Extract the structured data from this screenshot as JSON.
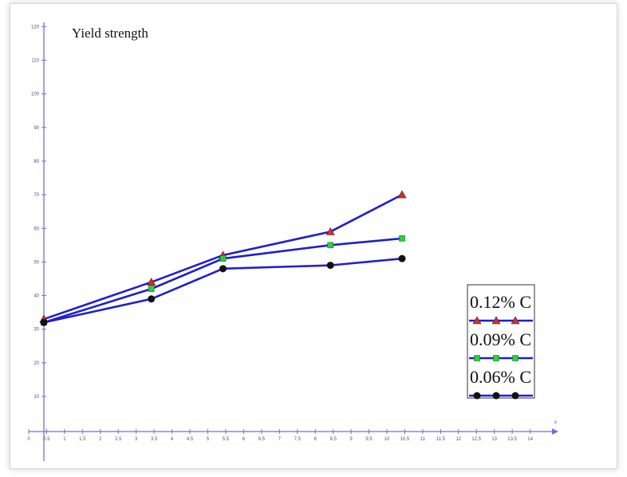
{
  "chart_data": {
    "type": "line",
    "title": "Yield strength",
    "xlabel": "",
    "ylabel": "",
    "x_axis_end_label": "x",
    "xlim": [
      0,
      14.5
    ],
    "ylim": [
      5,
      121
    ],
    "x_ticks": [
      0,
      0.5,
      1,
      1.5,
      2,
      2.5,
      3,
      3.5,
      4,
      4.5,
      5,
      5.5,
      6,
      6.5,
      7,
      7.5,
      8,
      8.5,
      9,
      9.5,
      10,
      10.5,
      11,
      11.5,
      12,
      12.5,
      13,
      13.5,
      14
    ],
    "x_tick_labels": [
      "0",
      "0.5",
      "1",
      "1.5",
      "2",
      "2.5",
      "3",
      "3.5",
      "4",
      "4.5",
      "5",
      "5.5",
      "6",
      "6.5",
      "7",
      "7.5",
      "8",
      "8.5",
      "9",
      "9.5",
      "10",
      "10.5",
      "11",
      "11.5",
      "12",
      "12.5",
      "13",
      "13.5",
      "14"
    ],
    "y_ticks": [
      10,
      20,
      30,
      40,
      50,
      60,
      70,
      80,
      90,
      100,
      110,
      120
    ],
    "y_tick_labels": [
      "10",
      "20",
      "30",
      "40",
      "50",
      "60",
      "70",
      "80",
      "90",
      "100",
      "110",
      "120"
    ],
    "grid": false,
    "legend_position": "bottom-right",
    "line_color": "#1f1fd0",
    "axis_color": "#6d6df0",
    "series": [
      {
        "name": "0.12% C",
        "marker": "triangle",
        "marker_color": "#c0392b",
        "x": [
          0,
          3,
          5,
          8,
          10
        ],
        "y": [
          33,
          44,
          52,
          59,
          70
        ]
      },
      {
        "name": "0.09% C",
        "marker": "square",
        "marker_color": "#2ecc40",
        "x": [
          0,
          3,
          5,
          8,
          10
        ],
        "y": [
          32,
          42,
          51,
          55,
          57
        ]
      },
      {
        "name": "0.06% C",
        "marker": "circle",
        "marker_color": "#111111",
        "x": [
          0,
          3,
          5,
          8,
          10
        ],
        "y": [
          32,
          39,
          48,
          49,
          51
        ]
      }
    ]
  }
}
